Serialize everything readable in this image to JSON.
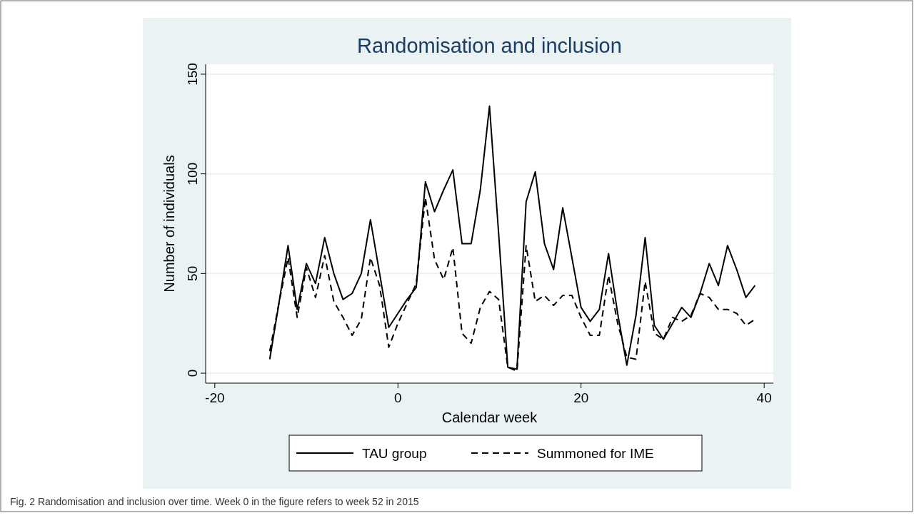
{
  "chart_data": {
    "type": "line",
    "title": "Randomisation and inclusion",
    "xlabel": "Calendar week",
    "ylabel": "Number of individuals",
    "x": [
      -14,
      -13,
      -12,
      -11,
      -10,
      -9,
      -8,
      -7,
      -6,
      -5,
      -4,
      -3,
      -2,
      -1,
      0,
      1,
      2,
      3,
      4,
      5,
      6,
      7,
      8,
      9,
      10,
      11,
      12,
      13,
      14,
      15,
      16,
      17,
      18,
      19,
      20,
      21,
      22,
      23,
      24,
      25,
      26,
      27,
      28,
      29,
      30,
      31,
      32,
      33,
      34,
      35,
      36,
      37,
      38,
      39
    ],
    "series": [
      {
        "name": "TAU group",
        "color": "#000000",
        "line_style": "solid",
        "values": [
          7,
          35,
          64,
          32,
          55,
          45,
          68,
          50,
          37,
          40,
          50,
          77,
          50,
          23,
          30,
          37,
          43,
          96,
          81,
          92,
          102,
          65,
          65,
          92,
          134,
          70,
          3,
          2,
          86,
          101,
          65,
          52,
          83,
          58,
          33,
          26,
          32,
          60,
          30,
          4,
          29,
          68,
          24,
          17,
          25,
          33,
          28,
          40,
          55,
          44,
          64,
          52,
          38,
          44
        ]
      },
      {
        "name": "Summoned for IME",
        "color": "#000000",
        "line_style": "dashed",
        "values": [
          11,
          35,
          58,
          28,
          53,
          38,
          59,
          36,
          28,
          19,
          27,
          58,
          44,
          13,
          25,
          35,
          45,
          88,
          57,
          47,
          63,
          20,
          15,
          33,
          41,
          37,
          3,
          1,
          64,
          36,
          39,
          34,
          39,
          39,
          28,
          19,
          19,
          49,
          25,
          8,
          7,
          46,
          20,
          17,
          28,
          26,
          29,
          40,
          38,
          32,
          32,
          30,
          24,
          27
        ]
      }
    ],
    "xlim": [
      -21,
      41
    ],
    "ylim": [
      -5,
      155
    ],
    "xticks": [
      -20,
      0,
      20,
      40
    ],
    "yticks": [
      0,
      50,
      100,
      150
    ],
    "grid": "y",
    "legend": "bottom",
    "marker": "none",
    "annotations": [
      "Fig. 2  Randomisation and inclusion over time. Week 0 in the figure refers to week 52 in 2015"
    ]
  }
}
